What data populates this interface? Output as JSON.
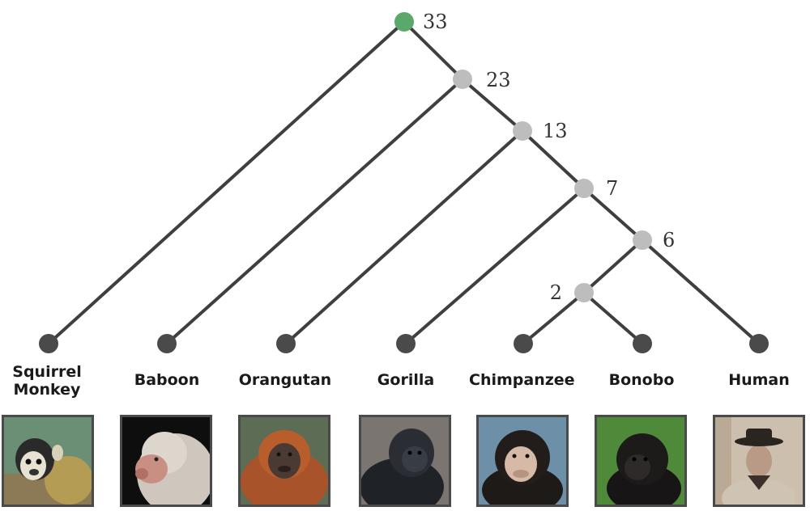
{
  "colors": {
    "root_node": "#5aa86a",
    "internal_node": "#bdbdbd",
    "leaf_node": "#4a4a4a",
    "branch": "#3f3f3f"
  },
  "internal_nodes": [
    {
      "id": "n33",
      "label": "33",
      "kind": "root"
    },
    {
      "id": "n23",
      "label": "23",
      "kind": "internal"
    },
    {
      "id": "n13",
      "label": "13",
      "kind": "internal"
    },
    {
      "id": "n7",
      "label": "7",
      "kind": "internal"
    },
    {
      "id": "n6",
      "label": "6",
      "kind": "internal"
    },
    {
      "id": "n2",
      "label": "2",
      "kind": "internal"
    }
  ],
  "species": [
    {
      "id": "squirrel-monkey",
      "name": "Squirrel\nMonkey"
    },
    {
      "id": "baboon",
      "name": "Baboon"
    },
    {
      "id": "orangutan",
      "name": "Orangutan"
    },
    {
      "id": "gorilla",
      "name": "Gorilla"
    },
    {
      "id": "chimpanzee",
      "name": "Chimpanzee"
    },
    {
      "id": "bonobo",
      "name": "Bonobo"
    },
    {
      "id": "human",
      "name": "Human"
    }
  ],
  "edges": [
    [
      "n33",
      "squirrel-monkey"
    ],
    [
      "n33",
      "n23"
    ],
    [
      "n23",
      "baboon"
    ],
    [
      "n23",
      "n13"
    ],
    [
      "n13",
      "orangutan"
    ],
    [
      "n13",
      "n7"
    ],
    [
      "n7",
      "gorilla"
    ],
    [
      "n7",
      "n6"
    ],
    [
      "n6",
      "n2"
    ],
    [
      "n6",
      "human"
    ],
    [
      "n2",
      "chimpanzee"
    ],
    [
      "n2",
      "bonobo"
    ]
  ]
}
